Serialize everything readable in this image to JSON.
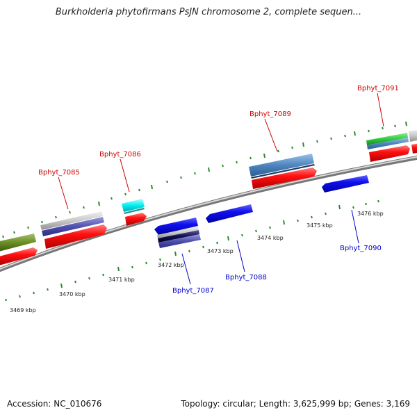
{
  "title": "Burkholderia phytofirmans PsJN chromosome 2, complete sequen...",
  "footer": {
    "accession": "Accession: NC_010676",
    "topology": "Topology: circular; Length: 3,625,999 bp; Genes: 3,169"
  },
  "colors": {
    "backbone": "#888888",
    "forward_tick": "#2e8b2e",
    "forward_label": "#cc0000",
    "reverse_label": "#0000cc"
  },
  "gene_labels": {
    "forward": [
      "Bphyt_7085",
      "Bphyt_7086",
      "Bphyt_7089",
      "Bphyt_7091"
    ],
    "reverse": [
      "Bphyt_7087",
      "Bphyt_7088",
      "Bphyt_7090"
    ]
  },
  "scale_labels": [
    "3469 kbp",
    "3470 kbp",
    "3471 kbp",
    "3472 kbp",
    "3473 kbp",
    "3474 kbp",
    "3475 kbp",
    "3476 kbp"
  ]
}
